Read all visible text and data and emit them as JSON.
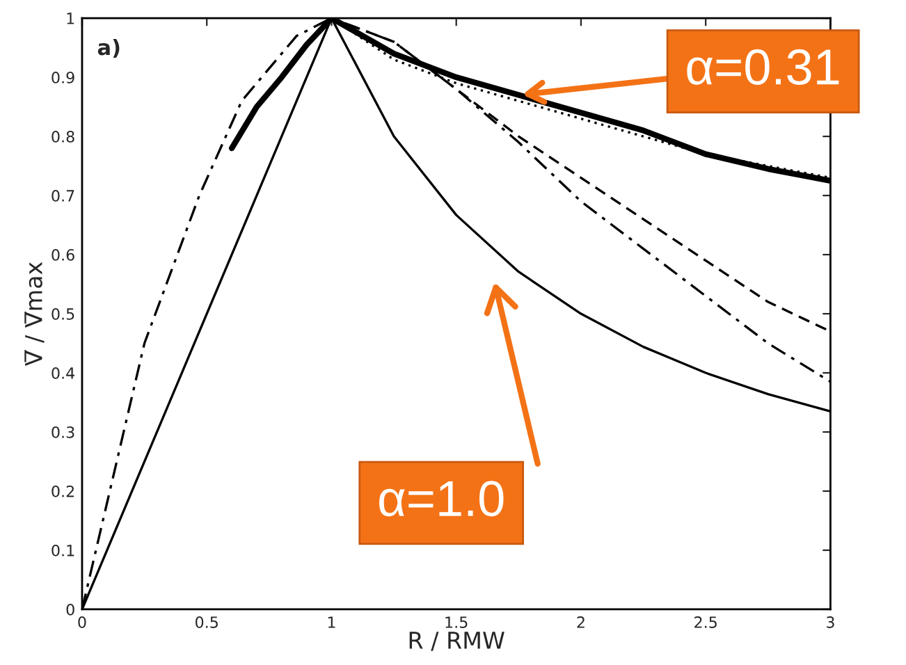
{
  "chart_data": {
    "type": "line",
    "xlabel": "R / RMW",
    "ylabel": "V̅ / V̅max",
    "xlim": [
      0,
      3
    ],
    "ylim": [
      0,
      1
    ],
    "xticks": [
      0,
      0.5,
      1,
      1.5,
      2,
      2.5,
      3
    ],
    "yticks": [
      0,
      0.1,
      0.2,
      0.3,
      0.4,
      0.5,
      0.6,
      0.7,
      0.8,
      0.9,
      1
    ],
    "grid": false,
    "marker": "none",
    "series": [
      {
        "color": "#000000",
        "line_style": "solid",
        "x": [
          0,
          1,
          1.25,
          1.5,
          1.75,
          2,
          2.25,
          2.5,
          2.75,
          3
        ],
        "values": [
          0,
          1,
          0.8,
          0.667,
          0.571,
          0.5,
          0.444,
          0.4,
          0.364,
          0.335
        ]
      },
      {
        "color": "#000000",
        "line_style": "solid",
        "x": [
          0.6,
          0.7,
          0.8,
          0.9,
          1,
          1.25,
          1.5,
          1.75,
          2,
          2.25,
          2.5,
          2.75,
          3
        ],
        "values": [
          0.78,
          0.85,
          0.9,
          0.955,
          1,
          0.94,
          0.9,
          0.87,
          0.84,
          0.81,
          0.77,
          0.745,
          0.725
        ]
      },
      {
        "color": "#000000",
        "line_style": "dotted",
        "x": [
          1,
          1.25,
          1.5,
          1.75,
          2,
          2.25,
          2.5,
          2.75,
          3
        ],
        "values": [
          1,
          0.93,
          0.89,
          0.86,
          0.83,
          0.8,
          0.77,
          0.75,
          0.73
        ]
      },
      {
        "color": "#000000",
        "line_style": "dashed",
        "x": [
          1,
          1.25,
          1.5,
          1.75,
          2,
          2.25,
          2.5,
          2.75,
          3
        ],
        "values": [
          1,
          0.96,
          0.88,
          0.8,
          0.73,
          0.66,
          0.59,
          0.52,
          0.47
        ]
      },
      {
        "color": "#000000",
        "line_style": "dashdot",
        "x": [
          0,
          0.1,
          0.25,
          0.47,
          0.64,
          0.86,
          1,
          1.25,
          1.5,
          1.75,
          2,
          2.25,
          2.5,
          2.75,
          3
        ],
        "values": [
          0,
          0.18,
          0.45,
          0.7,
          0.86,
          0.97,
          1,
          0.96,
          0.88,
          0.79,
          0.69,
          0.61,
          0.53,
          0.45,
          0.385
        ]
      }
    ],
    "annotations": [
      "a)",
      {
        "text": "α=0.31",
        "x": 1.75,
        "y": 0.87
      },
      "α=1.0"
    ]
  }
}
